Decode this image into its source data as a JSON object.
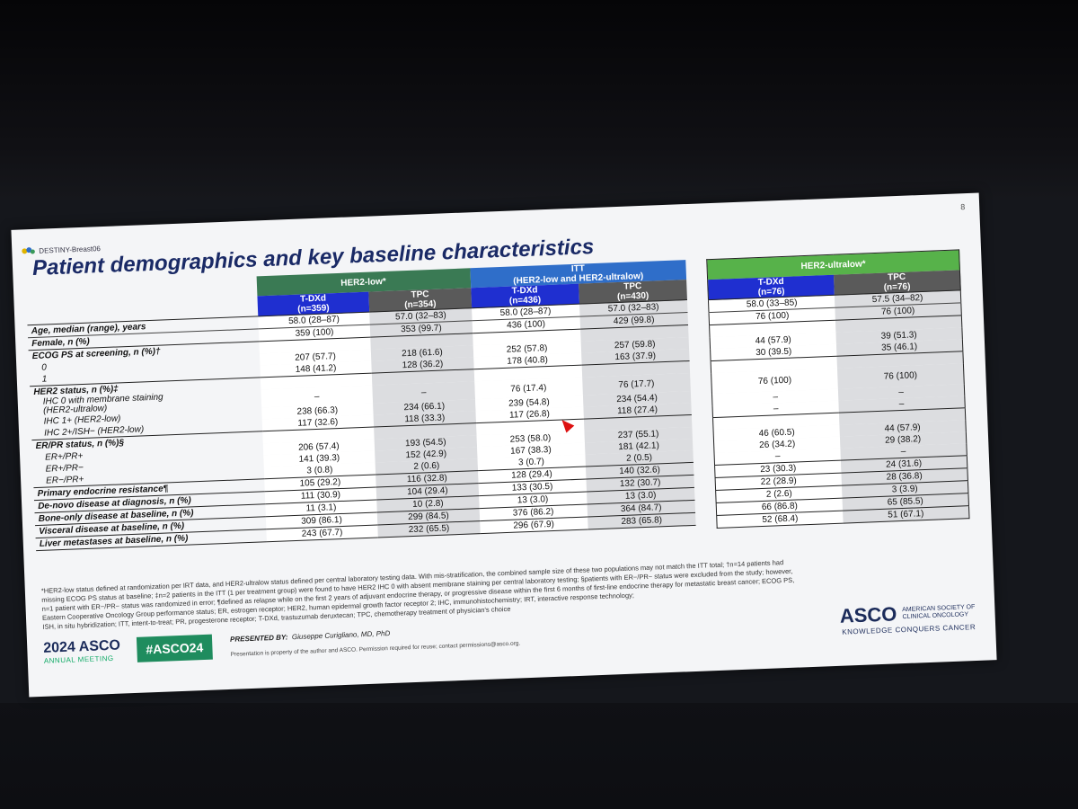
{
  "slide": {
    "page_number": "8",
    "study_name": "DESTINY-Breast06",
    "title": "Patient demographics and key baseline characteristics"
  },
  "groups": {
    "her2_low": "HER2-low*",
    "itt_line1": "ITT",
    "itt_line2": "(HER2-low and HER2-ultralow)",
    "her2_ultralow": "HER2-ultralow*"
  },
  "arms": {
    "low_tdxd": "T-DXd",
    "low_tdxd_n": "(n=359)",
    "low_tpc": "TPC",
    "low_tpc_n": "(n=354)",
    "itt_tdxd": "T-DXd",
    "itt_tdxd_n": "(n=436)",
    "itt_tpc": "TPC",
    "itt_tpc_n": "(n=430)",
    "ul_tdxd": "T-DXd",
    "ul_tdxd_n": "(n=76)",
    "ul_tpc": "TPC",
    "ul_tpc_n": "(n=76)"
  },
  "rows": {
    "age": {
      "label": "Age, median (range), years",
      "v": [
        "58.0 (28–87)",
        "57.0 (32–83)",
        "58.0 (28–87)",
        "57.0 (32–83)",
        "58.0 (33–85)",
        "57.5 (34–82)"
      ]
    },
    "female": {
      "label": "Female, n (%)",
      "v": [
        "359 (100)",
        "353 (99.7)",
        "436 (100)",
        "429 (99.8)",
        "76 (100)",
        "76 (100)"
      ]
    },
    "ecog": {
      "label": "ECOG PS at screening, n (%)†",
      "r0": {
        "label": "0",
        "v": [
          "207 (57.7)",
          "218 (61.6)",
          "252 (57.8)",
          "257 (59.8)",
          "44 (57.9)",
          "39 (51.3)"
        ]
      },
      "r1": {
        "label": "1",
        "v": [
          "148 (41.2)",
          "128 (36.2)",
          "178 (40.8)",
          "163 (37.9)",
          "30 (39.5)",
          "35 (46.1)"
        ]
      }
    },
    "her2": {
      "label": "HER2 status, n (%)‡",
      "r0": {
        "label": "IHC 0 with membrane staining",
        "label2": "(HER2-ultralow)",
        "v": [
          "–",
          "–",
          "76 (17.4)",
          "76 (17.7)",
          "76 (100)",
          "76 (100)"
        ]
      },
      "r1": {
        "label": "IHC 1+ (HER2-low)",
        "v": [
          "238 (66.3)",
          "234 (66.1)",
          "239 (54.8)",
          "234 (54.4)",
          "–",
          "–"
        ]
      },
      "r2": {
        "label": "IHC 2+/ISH− (HER2-low)",
        "v": [
          "117 (32.6)",
          "118 (33.3)",
          "117 (26.8)",
          "118 (27.4)",
          "–",
          "–"
        ]
      }
    },
    "erpr": {
      "label": "ER/PR status, n (%)§",
      "r0": {
        "label": "ER+/PR+",
        "v": [
          "206 (57.4)",
          "193 (54.5)",
          "253 (58.0)",
          "237 (55.1)",
          "46 (60.5)",
          "44 (57.9)"
        ]
      },
      "r1": {
        "label": "ER+/PR−",
        "v": [
          "141 (39.3)",
          "152 (42.9)",
          "167 (38.3)",
          "181 (42.1)",
          "26 (34.2)",
          "29 (38.2)"
        ]
      },
      "r2": {
        "label": "ER−/PR+",
        "v": [
          "3 (0.8)",
          "2 (0.6)",
          "3 (0.7)",
          "2 (0.5)",
          "–",
          "–"
        ]
      }
    },
    "pendo": {
      "label": "Primary endocrine resistance¶",
      "v": [
        "105 (29.2)",
        "116 (32.8)",
        "128 (29.4)",
        "140 (32.6)",
        "23 (30.3)",
        "24 (31.6)"
      ]
    },
    "denovo": {
      "label": "De-novo disease at diagnosis, n (%)",
      "v": [
        "111 (30.9)",
        "104 (29.4)",
        "133 (30.5)",
        "132 (30.7)",
        "22 (28.9)",
        "28 (36.8)"
      ]
    },
    "bone": {
      "label": "Bone-only disease at baseline, n (%)",
      "v": [
        "11 (3.1)",
        "10 (2.8)",
        "13 (3.0)",
        "13 (3.0)",
        "2 (2.6)",
        "3 (3.9)"
      ]
    },
    "visceral": {
      "label": "Visceral disease at baseline, n (%)",
      "v": [
        "309 (86.1)",
        "299 (84.5)",
        "376 (86.2)",
        "364 (84.7)",
        "66 (86.8)",
        "65 (85.5)"
      ]
    },
    "liver": {
      "label": "Liver metastases at baseline, n (%)",
      "v": [
        "243 (67.7)",
        "232 (65.5)",
        "296 (67.9)",
        "283 (65.8)",
        "52 (68.4)",
        "51 (67.1)"
      ]
    }
  },
  "footnote": {
    "l1": "*HER2-low status defined at randomization per IRT data, and HER2-ultralow status defined per central laboratory testing data. With mis-stratification, the combined sample size of these two populations may not match the ITT total; †n=14 patients had",
    "l2": "missing ECOG PS status at baseline; ‡n=2 patients in the ITT (1 per treatment group) were found to have HER2 IHC 0 with absent membrane staining per central laboratory testing; §patients with ER−/PR− status were excluded from the study; however,",
    "l3": "n=1 patient with ER−/PR− status was randomized in error; ¶defined as relapse while on the first 2 years of adjuvant endocrine therapy, or progressive disease within the first 6 months of first-line endocrine therapy for metastatic breast cancer; ECOG PS,",
    "l4": "Eastern Cooperative Oncology Group performance status; ER, estrogen receptor; HER2, human epidermal growth factor receptor 2; IHC, immunohistochemistry; IRT, interactive response technology;",
    "l5": "ISH, in situ hybridization; ITT, intent-to-treat; PR, progesterone receptor; T-DXd, trastuzumab deruxtecan; TPC, chemotherapy treatment of physician's choice"
  },
  "branding": {
    "meeting_year": "2024 ASCO",
    "meeting_sub": "ANNUAL MEETING",
    "hashtag": "#ASCO24",
    "presented_by_label": "PRESENTED BY:",
    "presenter": "Giuseppe Curigliano, MD, PhD",
    "property_note": "Presentation is property of the author and ASCO. Permission required for reuse; contact permissions@asco.org.",
    "asco": "ASCO",
    "society_line1": "AMERICAN SOCIETY OF",
    "society_line2": "CLINICAL ONCOLOGY",
    "tagline": "KNOWLEDGE CONQUERS CANCER"
  },
  "colors": {
    "her2_low_header": "#3a7a54",
    "itt_header": "#2f6ec9",
    "ultralow_header": "#57b24a",
    "tdxd_arm": "#1f2fd0",
    "tpc_arm": "#5a5a5a",
    "title": "#1a2a66"
  }
}
